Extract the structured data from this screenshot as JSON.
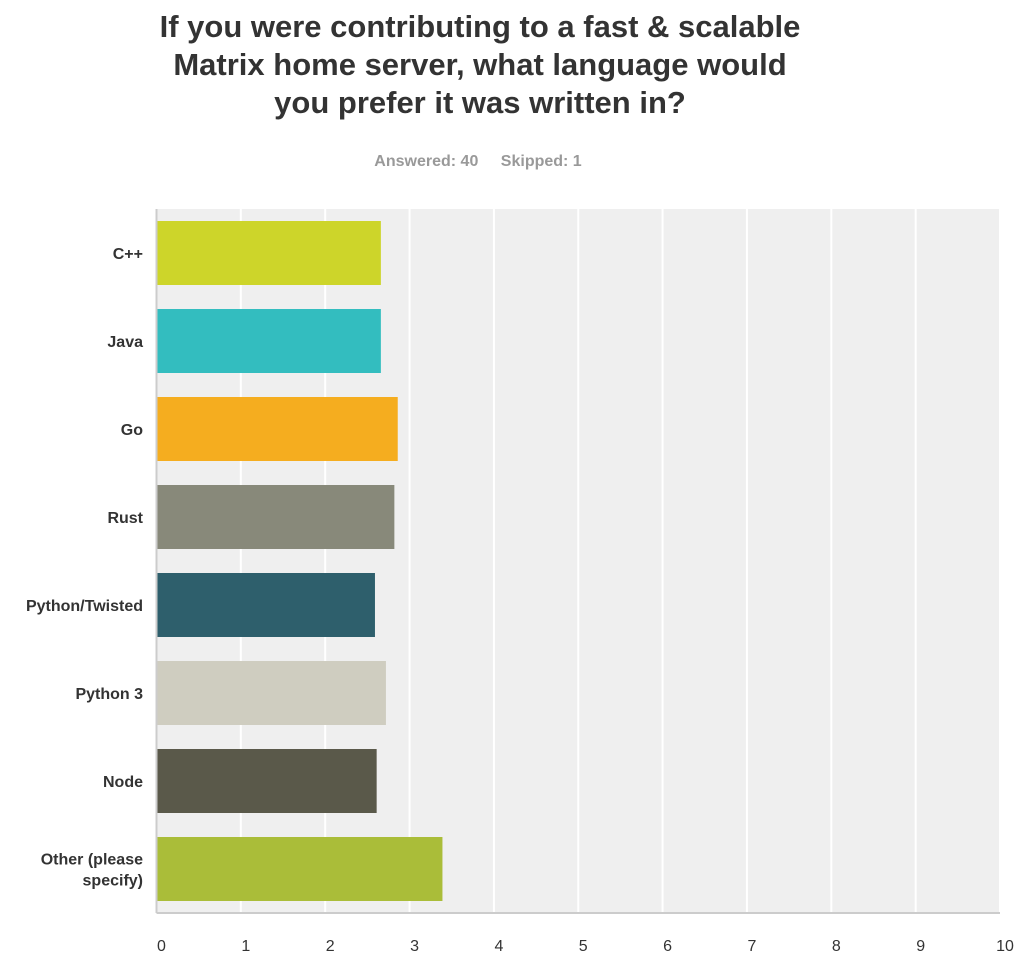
{
  "chart_data": {
    "type": "bar",
    "orientation": "horizontal",
    "title": "If you were contributing to a fast & scalable Matrix home server, what language would you prefer it was written in?",
    "title_lines": [
      "If you were contributing to a fast & scalable",
      "Matrix home server, what language would",
      "you prefer it was written in?"
    ],
    "answered": "Answered: 40",
    "skipped": "Skipped: 1",
    "categories": [
      "C++",
      "Java",
      "Go",
      "Rust",
      "Python/Twisted",
      "Python 3",
      "Node",
      "Other (please specify)"
    ],
    "category_lines": [
      [
        "C++"
      ],
      [
        "Java"
      ],
      [
        "Go"
      ],
      [
        "Rust"
      ],
      [
        "Python/Twisted"
      ],
      [
        "Python 3"
      ],
      [
        "Node"
      ],
      [
        "Other (please",
        "specify)"
      ]
    ],
    "values": [
      2.66,
      2.66,
      2.86,
      2.82,
      2.59,
      2.72,
      2.61,
      3.39
    ],
    "colors": [
      "#cdd52a",
      "#33bdbf",
      "#f5ad1f",
      "#88897a",
      "#2e5f6c",
      "#cfcdc0",
      "#5a594a",
      "#aabd39"
    ],
    "xlim": [
      0,
      10
    ],
    "xticks": [
      "0",
      "1",
      "2",
      "3",
      "4",
      "5",
      "6",
      "7",
      "8",
      "9",
      "10"
    ],
    "grid": true,
    "background": "#efefef"
  }
}
